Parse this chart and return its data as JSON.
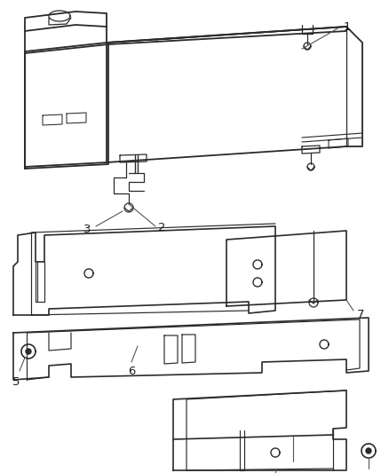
{
  "background": "#ffffff",
  "line_color": "#2a2a2a",
  "label_color": "#1a1a1a",
  "figsize": [
    4.38,
    5.33
  ],
  "dpi": 100
}
